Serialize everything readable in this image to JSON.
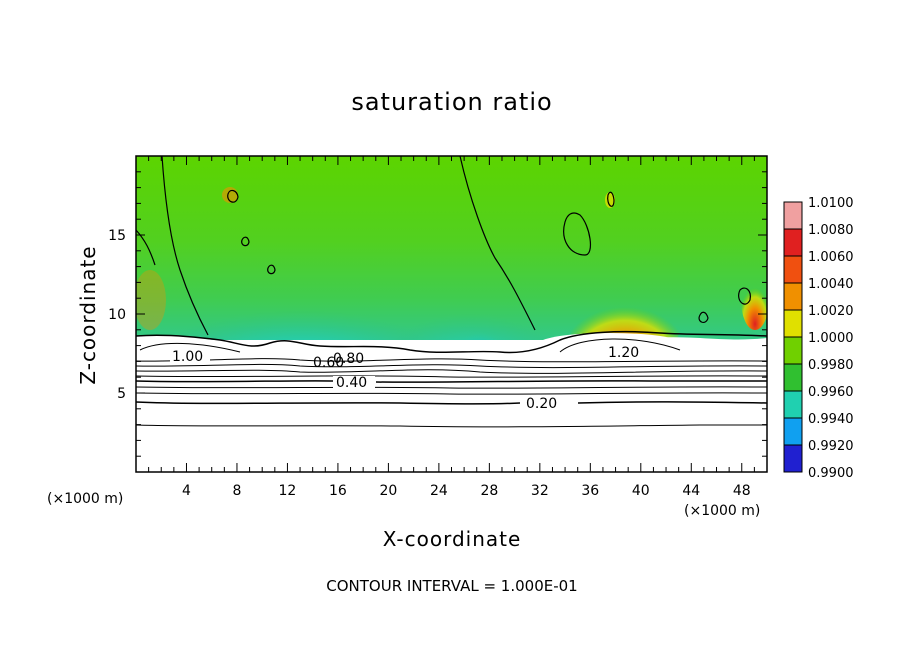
{
  "chart_data": {
    "type": "heatmap",
    "title": "saturation ratio",
    "xlabel": "X-coordinate",
    "ylabel": "Z-coordinate",
    "x_unit": "(×1000 m)",
    "xlim": [
      0,
      50
    ],
    "ylim": [
      0,
      20
    ],
    "x_ticks": [
      "4",
      "8",
      "12",
      "16",
      "20",
      "24",
      "28",
      "32",
      "36",
      "40",
      "44",
      "48"
    ],
    "y_ticks": [
      "5",
      "10",
      "15"
    ],
    "colorbar": {
      "labels": [
        "1.0100",
        "1.0080",
        "1.0060",
        "1.0040",
        "1.0020",
        "1.0000",
        "0.9980",
        "0.9960",
        "0.9940",
        "0.9920",
        "0.9900"
      ],
      "colors": [
        "#f0a0a0",
        "#e02020",
        "#f05010",
        "#f09000",
        "#e0e000",
        "#70d000",
        "#30c030",
        "#20d0b0",
        "#10a0f0",
        "#2020d0",
        "#8020a0"
      ]
    },
    "contour_labels": [
      "1.00",
      "0.60",
      "0.80",
      "0.40",
      "0.20",
      "1.20"
    ],
    "contour_interval_text": "CONTOUR INTERVAL = 1.000E-01"
  }
}
